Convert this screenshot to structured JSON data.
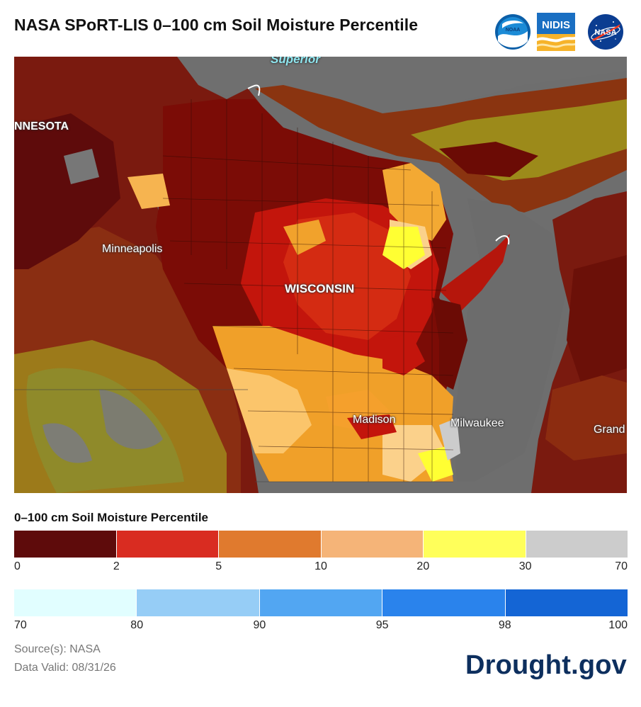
{
  "header": {
    "title": "NASA SPoRT-LIS 0–100 cm Soil Moisture Percentile",
    "logos": {
      "noaa": "NOAA",
      "nidis": "NIDIS",
      "nasa": "NASA"
    }
  },
  "map": {
    "labels": {
      "superior": "Superior",
      "minnesota": "NNESOTA",
      "minneapolis": "Minneapolis",
      "wisconsin": "WISCONSIN",
      "madison": "Madison",
      "milwaukee": "Milwaukee",
      "grand": "Grand"
    },
    "colors": {
      "water": "#6e6e6e",
      "land_dark_red": "#6b0b05",
      "land_red": "#b5160c",
      "orange": "#f1a22c",
      "light_orange": "#fbd18b",
      "yellow": "#ffff33",
      "olive": "#9c9a10"
    }
  },
  "legend": {
    "title": "0–100 cm Soil Moisture Percentile",
    "dry": {
      "colors": [
        "#5e0b0b",
        "#d92c21",
        "#e07a2e",
        "#f5b478",
        "#ffff5a",
        "#cccccc"
      ],
      "ticks": [
        "0",
        "2",
        "5",
        "10",
        "20",
        "30",
        "70"
      ]
    },
    "wet": {
      "colors": [
        "#e1feff",
        "#96cdf6",
        "#52a6f2",
        "#2a83ec",
        "#1465d5"
      ],
      "ticks": [
        "70",
        "80",
        "90",
        "95",
        "98",
        "100"
      ]
    }
  },
  "footer": {
    "source": "Source(s): NASA",
    "valid": "Data Valid: 08/31/26",
    "brand": "Drought.gov"
  }
}
